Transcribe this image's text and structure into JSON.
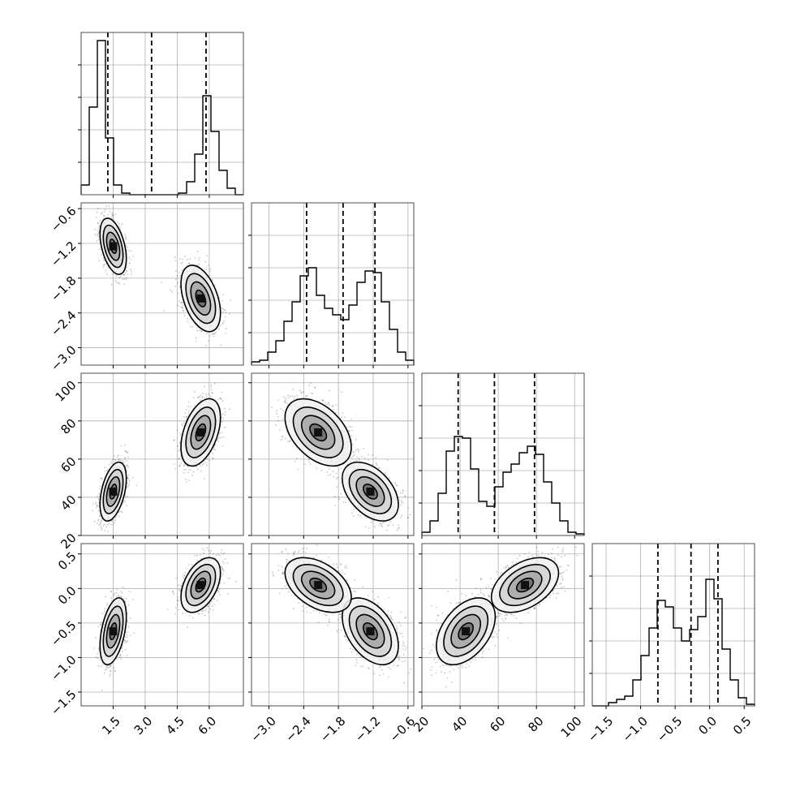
{
  "chart_data": {
    "type": "corner",
    "grid": true,
    "parameters": [
      {
        "range": [
          0.0,
          7.6
        ],
        "ticks": [
          1.5,
          3.0,
          4.5,
          6.0
        ],
        "tick_labels": [
          "1.5",
          "3.0",
          "4.5",
          "6.0"
        ],
        "quantiles": [
          1.25,
          3.3,
          5.85
        ],
        "modes": [
          {
            "center": 1.5,
            "sigma": 0.28,
            "weight": 0.5
          },
          {
            "center": 5.6,
            "sigma": 0.42,
            "weight": 0.5
          }
        ]
      },
      {
        "range": [
          -3.3,
          -0.5
        ],
        "ticks": [
          -3.0,
          -2.4,
          -1.8,
          -1.2,
          -0.6
        ],
        "tick_labels": [
          "−3.0",
          "−2.4",
          "−1.8",
          "−1.2",
          "−0.6"
        ],
        "quantiles": [
          -2.35,
          -1.72,
          -1.17
        ],
        "modes": [
          {
            "center": -1.25,
            "sigma": 0.22,
            "weight": 0.5
          },
          {
            "center": -2.15,
            "sigma": 0.26,
            "weight": 0.5
          }
        ]
      },
      {
        "range": [
          20,
          105
        ],
        "ticks": [
          20,
          40,
          60,
          80,
          100
        ],
        "tick_labels": [
          "20",
          "40",
          "60",
          "80",
          "100"
        ],
        "quantiles": [
          39,
          58,
          79
        ],
        "modes": [
          {
            "center": 43,
            "sigma": 7,
            "weight": 0.5
          },
          {
            "center": 74,
            "sigma": 8,
            "weight": 0.5
          }
        ]
      },
      {
        "range": [
          -1.7,
          0.65
        ],
        "ticks": [
          -1.5,
          -1.0,
          -0.5,
          0.0,
          0.5
        ],
        "tick_labels": [
          "−1.5",
          "−1.0",
          "−0.5",
          "0.0",
          "0.5"
        ],
        "quantiles": [
          -0.75,
          -0.27,
          0.12
        ],
        "modes": [
          {
            "center": -0.62,
            "sigma": 0.22,
            "weight": 0.5
          },
          {
            "center": 0.05,
            "sigma": 0.18,
            "weight": 0.5
          }
        ]
      }
    ],
    "histograms": [
      {
        "param": 0,
        "bin_edges": [
          0.0,
          0.38,
          0.76,
          1.14,
          1.52,
          1.9,
          2.28,
          2.66,
          3.04,
          3.42,
          3.8,
          4.18,
          4.56,
          4.94,
          5.32,
          5.7,
          6.08,
          6.46,
          6.84,
          7.22,
          7.6
        ],
        "counts": [
          0.06,
          0.54,
          0.95,
          0.35,
          0.06,
          0.01,
          0.0,
          0.0,
          0.0,
          0.0,
          0.0,
          0.0,
          0.01,
          0.08,
          0.25,
          0.61,
          0.39,
          0.15,
          0.04,
          0.0
        ]
      },
      {
        "param": 1,
        "bin_edges": [
          -3.3,
          -3.16,
          -3.02,
          -2.88,
          -2.74,
          -2.6,
          -2.46,
          -2.32,
          -2.18,
          -2.04,
          -1.9,
          -1.76,
          -1.62,
          -1.48,
          -1.34,
          -1.2,
          -1.06,
          -0.92,
          -0.78,
          -0.64,
          -0.5
        ],
        "counts": [
          0.02,
          0.03,
          0.08,
          0.15,
          0.27,
          0.39,
          0.55,
          0.6,
          0.43,
          0.35,
          0.31,
          0.28,
          0.37,
          0.51,
          0.58,
          0.57,
          0.39,
          0.22,
          0.08,
          0.03
        ]
      },
      {
        "param": 2,
        "bin_edges": [
          20,
          24.25,
          28.5,
          32.75,
          37,
          41.25,
          45.5,
          49.75,
          54,
          58.25,
          62.5,
          66.75,
          71,
          75.25,
          79.5,
          83.75,
          88,
          92.25,
          96.5,
          100.75,
          105
        ],
        "counts": [
          0.02,
          0.09,
          0.26,
          0.52,
          0.61,
          0.6,
          0.41,
          0.21,
          0.18,
          0.3,
          0.39,
          0.44,
          0.51,
          0.55,
          0.5,
          0.33,
          0.2,
          0.09,
          0.02,
          0.01
        ]
      },
      {
        "param": 3,
        "bin_edges": [
          -1.7,
          -1.5825,
          -1.465,
          -1.3475,
          -1.23,
          -1.1125,
          -0.995,
          -0.8775,
          -0.76,
          -0.6425,
          -0.525,
          -0.4075,
          -0.29,
          -0.1725,
          -0.055,
          0.0625,
          0.18,
          0.2975,
          0.415,
          0.5325,
          0.65
        ],
        "counts": [
          0.0,
          0.0,
          0.02,
          0.04,
          0.06,
          0.16,
          0.31,
          0.48,
          0.65,
          0.61,
          0.48,
          0.4,
          0.47,
          0.55,
          0.78,
          0.66,
          0.35,
          0.16,
          0.05,
          0.01
        ]
      }
    ],
    "scatter_panels": [
      {
        "x_param": 0,
        "y_param": 1
      },
      {
        "x_param": 0,
        "y_param": 2
      },
      {
        "x_param": 1,
        "y_param": 2
      },
      {
        "x_param": 0,
        "y_param": 3
      },
      {
        "x_param": 1,
        "y_param": 3
      },
      {
        "x_param": 2,
        "y_param": 3
      }
    ],
    "colors": {
      "points": "#000000",
      "contour": "#000000",
      "histogram": "#000000",
      "grid": "#b0b0b0",
      "frame": "#4d4d4d"
    }
  }
}
